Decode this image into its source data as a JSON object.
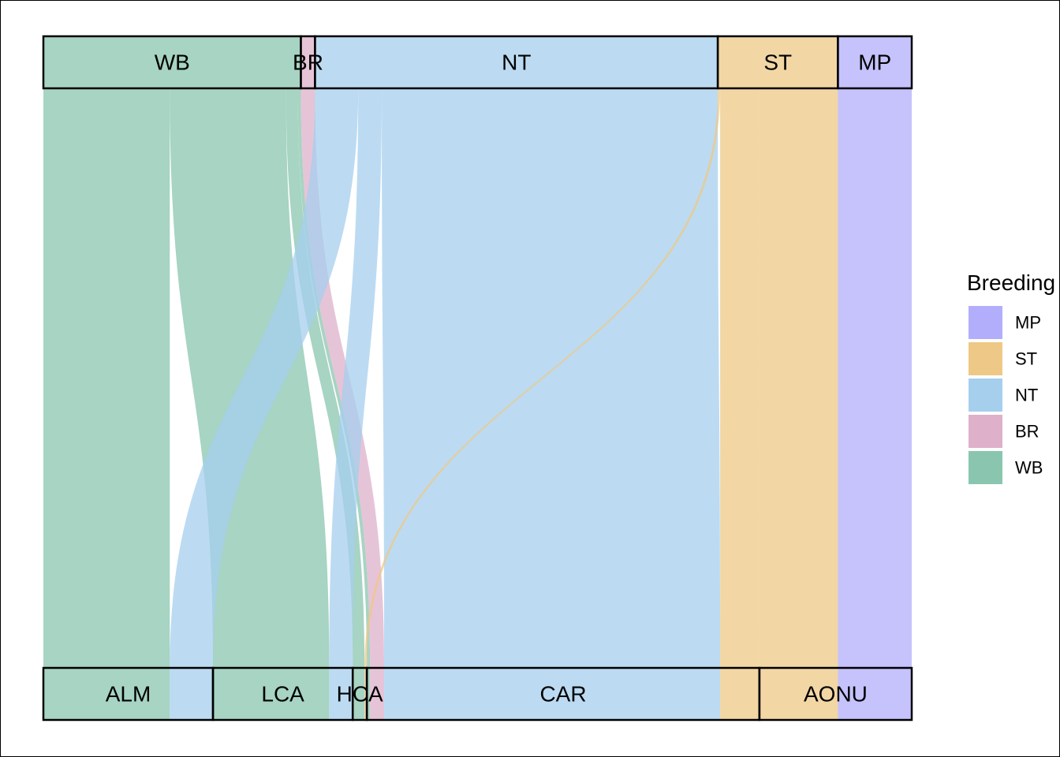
{
  "chart_data": {
    "type": "alluvial",
    "legend": {
      "title": "Breeding",
      "placement": "right",
      "entries": [
        "MP",
        "ST",
        "NT",
        "BR",
        "WB"
      ]
    },
    "colors": {
      "WB": "#8ac6af",
      "BR": "#deb0ca",
      "NT": "#a6cfee",
      "ST": "#eec886",
      "MP": "#b2aefb"
    },
    "strata_top": [
      "WB",
      "BR",
      "NT",
      "ST",
      "MP"
    ],
    "strata_bottom": [
      "ALM",
      "LCA",
      "HCA",
      "CAR",
      "AONU"
    ],
    "flows": [
      {
        "from": "WB",
        "to": "ALM",
        "value": 161
      },
      {
        "from": "WB",
        "to": "LCA",
        "value": 148
      },
      {
        "from": "WB",
        "to": "HCA",
        "value": 15
      },
      {
        "from": "WB",
        "to": "CAR",
        "value": 4
      },
      {
        "from": "BR",
        "to": "CAR",
        "value": 18
      },
      {
        "from": "NT",
        "to": "ALM",
        "value": 55
      },
      {
        "from": "NT",
        "to": "LCA",
        "value": 30
      },
      {
        "from": "NT",
        "to": "CAR",
        "value": 428
      },
      {
        "from": "ST",
        "to": "HCA",
        "value": 3
      },
      {
        "from": "ST",
        "to": "AONU",
        "value": 100
      },
      {
        "from": "ST",
        "to": "CAR",
        "value": 50
      },
      {
        "from": "MP",
        "to": "AONU",
        "value": 94
      }
    ]
  }
}
